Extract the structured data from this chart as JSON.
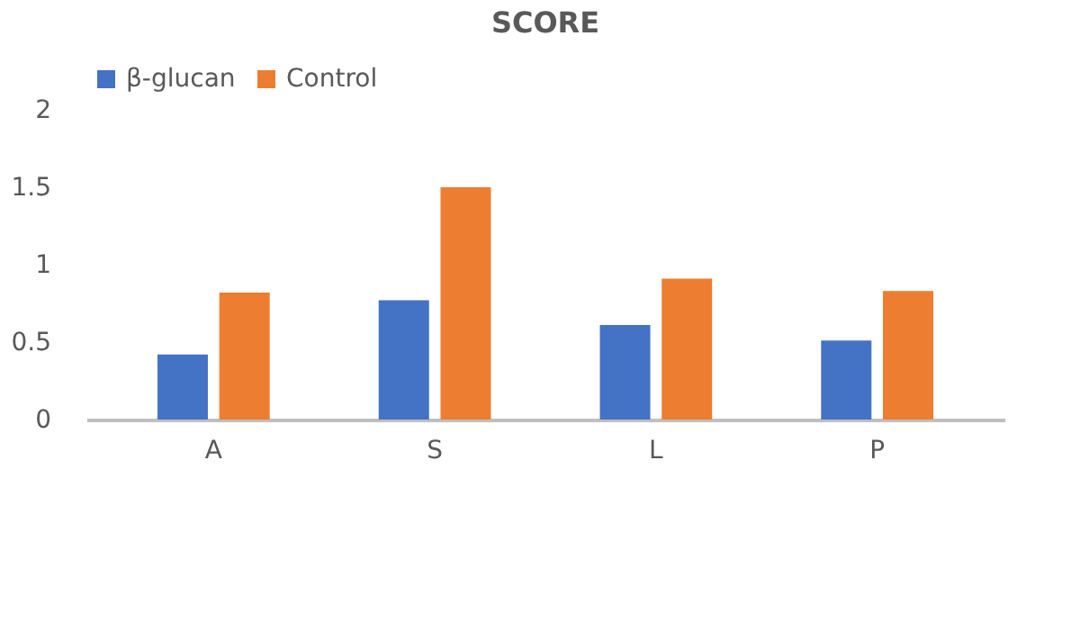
{
  "chart_data": {
    "type": "bar",
    "title": "SCORE",
    "categories": [
      "A",
      "S",
      "L",
      "P"
    ],
    "series": [
      {
        "name": "β-glucan",
        "color": "#4472c4",
        "values": [
          0.42,
          0.77,
          0.61,
          0.51
        ]
      },
      {
        "name": "Control",
        "color": "#ed7d31",
        "values": [
          0.82,
          1.5,
          0.91,
          0.83
        ]
      }
    ],
    "ylim": [
      0,
      2
    ],
    "yticks": [
      0,
      0.5,
      1,
      1.5,
      2
    ],
    "grid": false,
    "legend": "top"
  }
}
